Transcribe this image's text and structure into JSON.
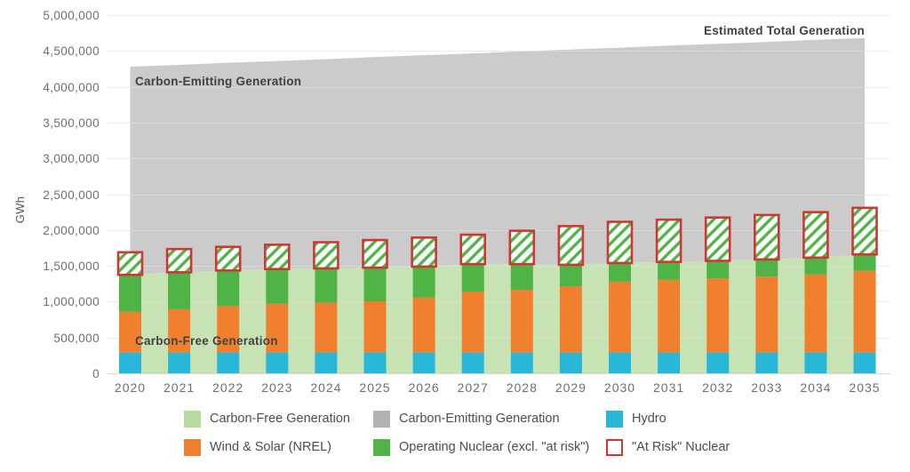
{
  "colors": {
    "area_carbon_free": "#c8e3b3",
    "area_carbon_emitting": "#cbcbcb",
    "legend_carbon_free": "#b7db9f",
    "legend_carbon_emitting": "#b2b2b2",
    "hydro": "#29b7d9",
    "wind_solar": "#f0802e",
    "operating_nuclear": "#4fb345",
    "at_risk_border": "#cf3832",
    "gridline": "#e0e0e0",
    "axis_text": "#6e6e6e",
    "annotation_text": "#414141"
  },
  "chart_data": {
    "type": "area+stacked-bar",
    "ylabel": "GWh",
    "ylim": [
      0,
      5000000
    ],
    "ytick_step": 500000,
    "ytick_labels": [
      "0",
      "500,000",
      "1,000,000",
      "1,500,000",
      "2,000,000",
      "2,500,000",
      "3,000,000",
      "3,500,000",
      "4,000,000",
      "4,500,000",
      "5,000,000"
    ],
    "grid": true,
    "years": [
      2020,
      2021,
      2022,
      2023,
      2024,
      2025,
      2026,
      2027,
      2028,
      2029,
      2030,
      2031,
      2032,
      2033,
      2034,
      2035
    ],
    "series": [
      {
        "name": "Hydro",
        "type": "bar",
        "values": [
          290000,
          290000,
          290000,
          290000,
          290000,
          290000,
          290000,
          290000,
          290000,
          290000,
          290000,
          290000,
          290000,
          290000,
          290000,
          290000
        ]
      },
      {
        "name": "Wind & Solar (NREL)",
        "type": "bar",
        "values": [
          570000,
          605000,
          650000,
          680000,
          695000,
          715000,
          770000,
          850000,
          875000,
          925000,
          990000,
          1015000,
          1035000,
          1060000,
          1090000,
          1140000
        ]
      },
      {
        "name": "Operating Nuclear (excl. \"at risk\")",
        "type": "bar",
        "values": [
          515000,
          515000,
          495000,
          485000,
          480000,
          470000,
          430000,
          385000,
          360000,
          300000,
          260000,
          250000,
          245000,
          240000,
          235000,
          230000
        ]
      },
      {
        "name": "\"At Risk\" Nuclear",
        "type": "bar-outline-hatched",
        "values": [
          315000,
          325000,
          330000,
          340000,
          365000,
          385000,
          405000,
          410000,
          465000,
          540000,
          575000,
          590000,
          605000,
          620000,
          635000,
          650000
        ]
      },
      {
        "name": "Carbon-Free Generation",
        "type": "area",
        "values": [
          1375000,
          1410000,
          1435000,
          1455000,
          1465000,
          1475000,
          1490000,
          1525000,
          1525000,
          1515000,
          1540000,
          1555000,
          1570000,
          1590000,
          1615000,
          1660000
        ]
      },
      {
        "name": "Estimated Total Generation",
        "type": "area-top-line",
        "values": [
          4280000,
          4305000,
          4335000,
          4360000,
          4385000,
          4415000,
          4440000,
          4465000,
          4495000,
          4520000,
          4545000,
          4575000,
          4600000,
          4625000,
          4655000,
          4680000
        ]
      }
    ],
    "annotations": {
      "carbon_emitting": "Carbon-Emitting Generation",
      "estimated_total": "Estimated Total Generation",
      "carbon_free": "Carbon-Free Generation"
    },
    "legend_position": "bottom"
  },
  "legend": {
    "items": [
      {
        "label": "Carbon-Free Generation"
      },
      {
        "label": "Carbon-Emitting Generation"
      },
      {
        "label": "Hydro"
      },
      {
        "label": "Wind & Solar (NREL)"
      },
      {
        "label": "Operating Nuclear (excl. \"at risk\")"
      },
      {
        "label": "\"At Risk\" Nuclear"
      }
    ]
  }
}
